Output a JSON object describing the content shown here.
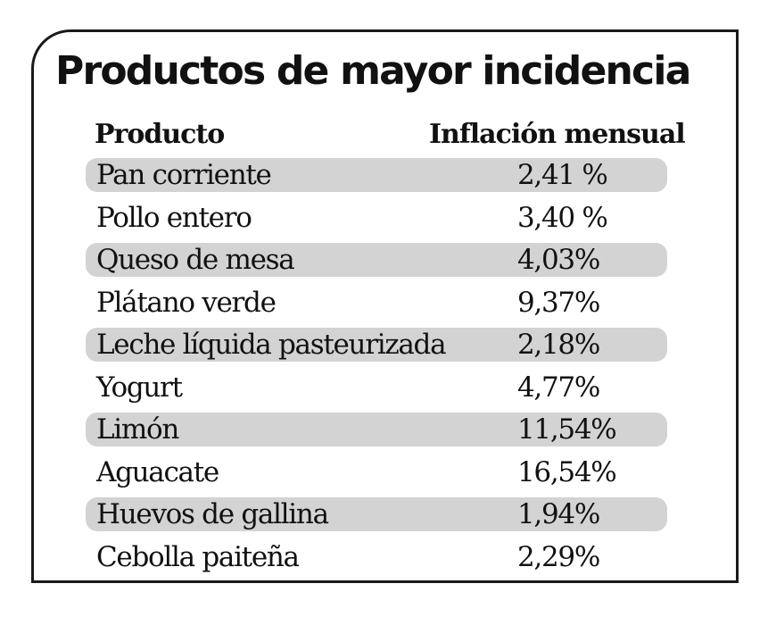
{
  "chart_data": {
    "type": "table",
    "title": "Productos de mayor incidencia",
    "columns": [
      "Producto",
      "Inflación mensual"
    ],
    "rows": [
      {
        "product": "Pan corriente",
        "value_label": "2,41 %",
        "value": 2.41
      },
      {
        "product": "Pollo entero",
        "value_label": "3,40 %",
        "value": 3.4
      },
      {
        "product": "Queso de mesa",
        "value_label": "4,03%",
        "value": 4.03
      },
      {
        "product": "Plátano verde",
        "value_label": "9,37%",
        "value": 9.37
      },
      {
        "product": "Leche líquida pasteurizada",
        "value_label": "2,18%",
        "value": 2.18
      },
      {
        "product": "Yogurt",
        "value_label": "4,77%",
        "value": 4.77
      },
      {
        "product": "Limón",
        "value_label": "11,54%",
        "value": 11.54
      },
      {
        "product": "Aguacate",
        "value_label": "16,54%",
        "value": 16.54
      },
      {
        "product": "Huevos de gallina",
        "value_label": "1,94%",
        "value": 1.94
      },
      {
        "product": "Cebolla paiteña",
        "value_label": "2,29%",
        "value": 2.29
      }
    ],
    "band_color": "#d4d3d4",
    "border_color": "#1a1a1a",
    "text_color": "#111111"
  }
}
